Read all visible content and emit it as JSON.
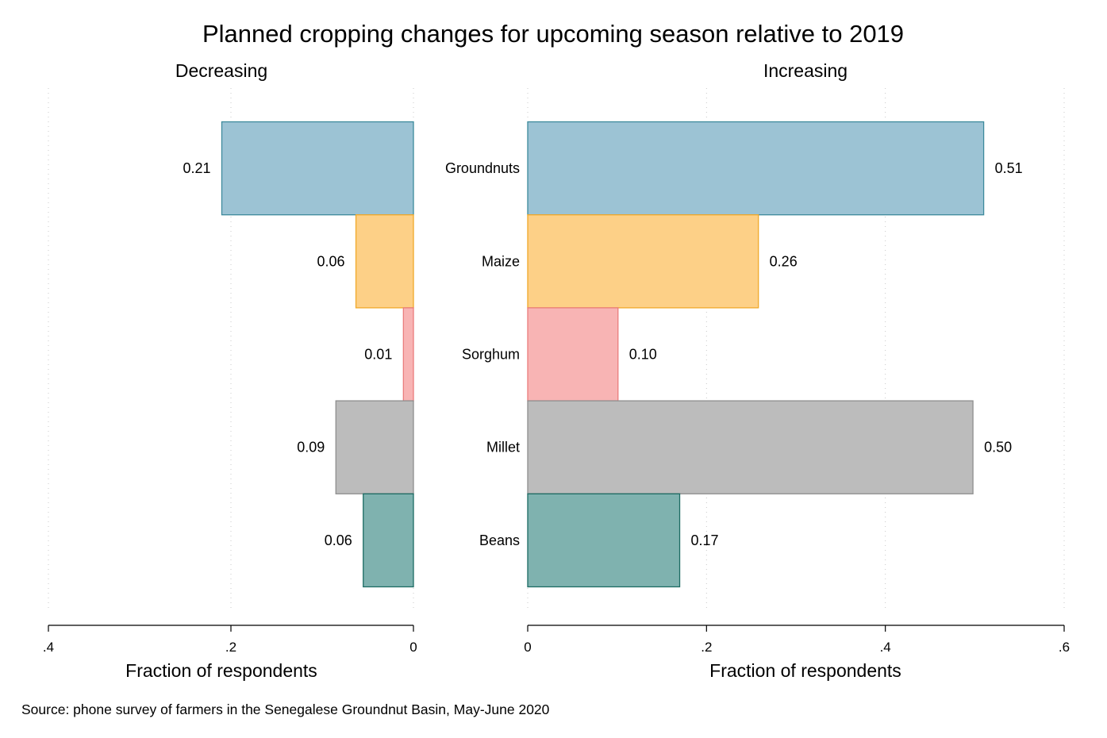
{
  "chart_data": {
    "type": "bar",
    "title": "Planned cropping changes for upcoming season relative to 2019",
    "categories": [
      "Groundnuts",
      "Maize",
      "Sorghum",
      "Millet",
      "Beans"
    ],
    "colors": [
      "#9cc3d4",
      "#fdd087",
      "#f8b4b4",
      "#bcbcbc",
      "#7fb2af"
    ],
    "edge_colors": [
      "#3d8a9c",
      "#f0a92a",
      "#ea7d7d",
      "#8e8e8e",
      "#1c6b63"
    ],
    "panels": [
      {
        "title": "Decreasing",
        "direction": "reversed",
        "xlabel": "Fraction of respondents",
        "xlim": [
          0,
          0.4
        ],
        "ticks": [
          0.4,
          0.2,
          0
        ],
        "tick_labels": [
          ".4",
          ".2",
          "0"
        ],
        "values": [
          0.21,
          0.063,
          0.011,
          0.085,
          0.055
        ],
        "value_labels": [
          "0.21",
          "0.06",
          "0.01",
          "0.09",
          "0.06"
        ],
        "show_categories": false
      },
      {
        "title": "Increasing",
        "direction": "normal",
        "xlabel": "Fraction of respondents",
        "xlim": [
          0,
          0.6
        ],
        "ticks": [
          0,
          0.2,
          0.4,
          0.6
        ],
        "tick_labels": [
          "0",
          ".2",
          ".4",
          ".6"
        ],
        "values": [
          0.51,
          0.258,
          0.101,
          0.498,
          0.17
        ],
        "value_labels": [
          "0.51",
          "0.26",
          "0.10",
          "0.50",
          "0.17"
        ],
        "show_categories": true
      }
    ],
    "grid": true,
    "legend": "none",
    "note": "Source: phone survey of farmers in the Senegalese Groundnut Basin, May-June 2020"
  }
}
